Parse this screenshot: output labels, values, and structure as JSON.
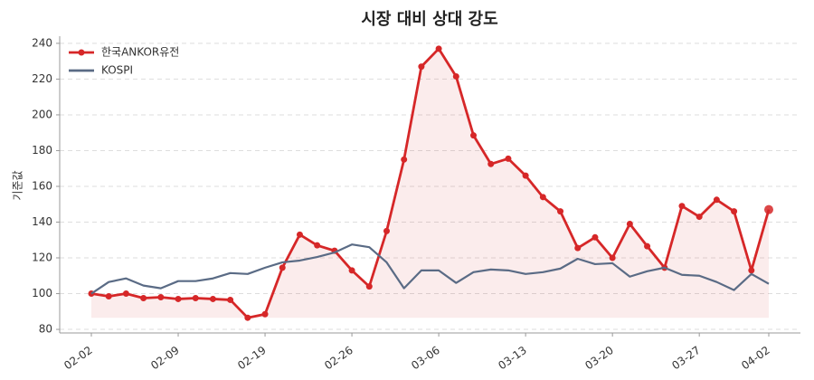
{
  "chart_data": {
    "type": "line",
    "title": "시장 대비 상대 강도",
    "y_label": "기준값",
    "categories": [
      "02-02",
      null,
      null,
      null,
      null,
      "02-09",
      null,
      null,
      null,
      null,
      "02-19",
      null,
      null,
      null,
      null,
      "02-26",
      null,
      null,
      null,
      null,
      "03-06",
      null,
      null,
      null,
      null,
      "03-13",
      null,
      null,
      null,
      null,
      "03-20",
      null,
      null,
      null,
      null,
      "03-27",
      null,
      null,
      null,
      "04-02"
    ],
    "series": [
      {
        "name": "한국ANKOR유전",
        "color": "#d62728",
        "fill": true,
        "markers": true,
        "values": [
          100,
          98.5,
          100,
          97.5,
          98,
          97,
          97.5,
          97,
          96.5,
          86.5,
          88.5,
          114.5,
          133,
          127,
          124,
          113,
          104,
          135,
          175,
          227,
          237,
          221.5,
          188.5,
          172.5,
          175.5,
          166,
          154,
          146,
          125.5,
          131.5,
          120,
          139,
          126.5,
          114.5,
          149,
          143,
          152.5,
          146,
          113,
          147
        ]
      },
      {
        "name": "KOSPI",
        "color": "#5a6b85",
        "fill": false,
        "markers": false,
        "values": [
          100,
          106.5,
          108.5,
          104.5,
          103,
          107,
          107,
          108.5,
          111.5,
          111,
          114.5,
          117.5,
          118.5,
          120.5,
          123,
          127.5,
          126,
          117.5,
          103,
          113,
          113,
          106,
          112,
          113.5,
          113,
          111,
          112,
          114,
          119.5,
          116.5,
          117,
          109.5,
          112.5,
          114.5,
          110.5,
          110,
          106.5,
          102,
          111,
          105.5
        ]
      }
    ],
    "ylim": [
      78,
      244
    ],
    "yticks": [
      80,
      100,
      120,
      140,
      160,
      180,
      200,
      220,
      240
    ],
    "grid": true,
    "legend": "upper-left"
  }
}
